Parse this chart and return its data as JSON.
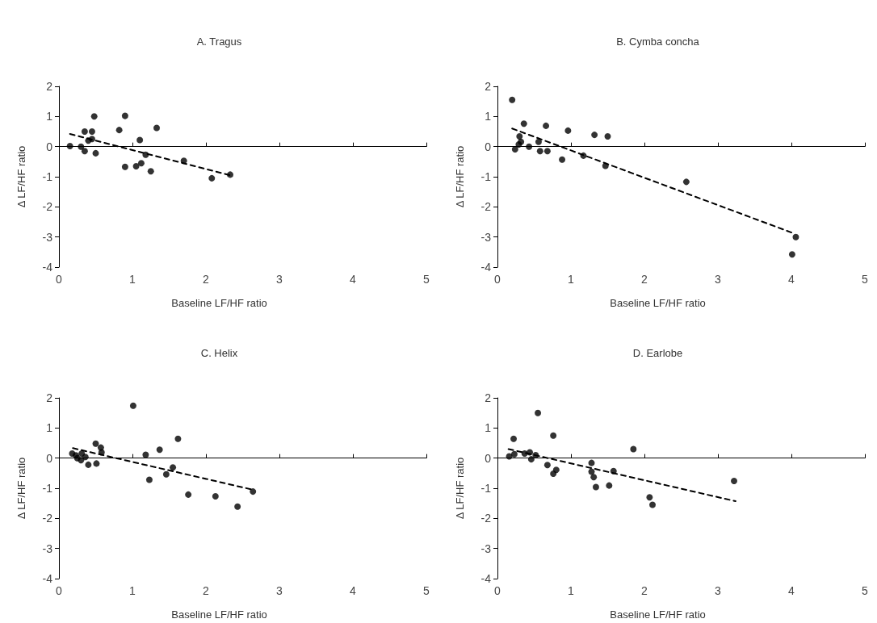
{
  "chart_data": [
    {
      "type": "scatter",
      "title": "A. Tragus",
      "xlabel": "Baseline LF/HF ratio",
      "ylabel": "Δ LF/HF ratio",
      "xlim": [
        0,
        5
      ],
      "xticks": [
        0,
        1,
        2,
        3,
        4,
        5
      ],
      "ylim": [
        -4,
        2
      ],
      "yticks": [
        -4,
        -3,
        -2,
        -1,
        0,
        1,
        2
      ],
      "series": [
        {
          "marker": "circle",
          "color": "#000000",
          "x": [
            0.15,
            0.3,
            0.35,
            0.35,
            0.4,
            0.45,
            0.45,
            0.48,
            0.5,
            0.82,
            0.9,
            0.9,
            1.05,
            1.1,
            1.12,
            1.18,
            1.25,
            1.33,
            1.7,
            2.08,
            2.33
          ],
          "values": [
            0.02,
            0.0,
            -0.15,
            0.5,
            0.2,
            0.5,
            0.25,
            1.0,
            -0.22,
            0.55,
            1.02,
            -0.67,
            -0.65,
            0.22,
            -0.55,
            -0.27,
            -0.82,
            0.62,
            -0.47,
            -1.05,
            -0.93
          ]
        },
        {
          "type": "line",
          "marker": "none",
          "color": "#000000",
          "line_style": "dashed",
          "x": [
            0.15,
            2.33
          ],
          "values": [
            0.42,
            -0.95
          ]
        }
      ]
    },
    {
      "type": "scatter",
      "title": "B. Cymba concha",
      "xlabel": "Baseline LF/HF ratio",
      "ylabel": "Δ LF/HF ratio",
      "xlim": [
        0,
        5
      ],
      "xticks": [
        0,
        1,
        2,
        3,
        4,
        5
      ],
      "ylim": [
        -4,
        2
      ],
      "yticks": [
        -4,
        -3,
        -2,
        -1,
        0,
        1,
        2
      ],
      "series": [
        {
          "marker": "circle",
          "color": "#000000",
          "x": [
            0.2,
            0.24,
            0.3,
            0.32,
            0.29,
            0.36,
            0.43,
            0.56,
            0.58,
            0.66,
            0.68,
            0.88,
            0.96,
            1.17,
            1.32,
            1.47,
            1.5,
            2.57,
            4.01,
            4.06
          ],
          "values": [
            1.55,
            -0.09,
            0.34,
            0.16,
            0.07,
            0.76,
            0.0,
            0.16,
            -0.15,
            0.69,
            -0.15,
            -0.43,
            0.53,
            -0.3,
            0.39,
            -0.64,
            0.34,
            -1.17,
            -3.58,
            -3.0
          ]
        },
        {
          "type": "line",
          "marker": "none",
          "color": "#000000",
          "line_style": "dashed",
          "x": [
            0.2,
            4.0
          ],
          "values": [
            0.6,
            -2.85
          ]
        }
      ]
    },
    {
      "type": "scatter",
      "title": "C. Helix",
      "xlabel": "Baseline LF/HF ratio",
      "ylabel": "Δ LF/HF ratio",
      "xlim": [
        0,
        5
      ],
      "xticks": [
        0,
        1,
        2,
        3,
        4,
        5
      ],
      "ylim": [
        -4,
        2
      ],
      "yticks": [
        -4,
        -3,
        -2,
        -1,
        0,
        1,
        2
      ],
      "series": [
        {
          "marker": "circle",
          "color": "#000000",
          "x": [
            0.18,
            0.23,
            0.25,
            0.28,
            0.3,
            0.31,
            0.36,
            0.4,
            0.5,
            0.51,
            0.57,
            0.58,
            1.01,
            1.18,
            1.23,
            1.37,
            1.46,
            1.55,
            1.62,
            1.76,
            2.13,
            2.43,
            2.64
          ],
          "values": [
            0.15,
            0.09,
            0.0,
            null,
            -0.07,
            0.15,
            0.04,
            -0.22,
            0.48,
            -0.18,
            0.35,
            0.19,
            1.74,
            0.11,
            -0.72,
            0.28,
            -0.54,
            -0.31,
            0.64,
            -1.21,
            -1.27,
            -1.61,
            -1.11
          ]
        },
        {
          "type": "line",
          "marker": "none",
          "color": "#000000",
          "line_style": "dashed",
          "x": [
            0.19,
            2.64
          ],
          "values": [
            0.33,
            -1.05
          ]
        }
      ]
    },
    {
      "type": "scatter",
      "title": "D. Earlobe",
      "xlabel": "Baseline LF/HF ratio",
      "ylabel": "Δ LF/HF ratio",
      "xlim": [
        0,
        5
      ],
      "xticks": [
        0,
        1,
        2,
        3,
        4,
        5
      ],
      "ylim": [
        -4,
        2
      ],
      "yticks": [
        -4,
        -3,
        -2,
        -1,
        0,
        1,
        2
      ],
      "series": [
        {
          "marker": "circle",
          "color": "#000000",
          "x": [
            0.16,
            0.23,
            0.22,
            0.37,
            0.44,
            0.46,
            0.52,
            0.55,
            0.68,
            0.76,
            0.76,
            0.8,
            1.28,
            1.28,
            1.31,
            1.34,
            1.52,
            1.58,
            1.85,
            2.07,
            2.11,
            3.22
          ],
          "values": [
            0.06,
            0.13,
            0.64,
            0.15,
            0.19,
            -0.04,
            0.1,
            1.5,
            -0.23,
            0.75,
            -0.52,
            -0.39,
            -0.16,
            -0.45,
            -0.63,
            -0.96,
            -0.91,
            -0.43,
            0.3,
            -1.3,
            -1.55,
            -0.76
          ]
        },
        {
          "type": "line",
          "marker": "none",
          "color": "#000000",
          "line_style": "dashed",
          "x": [
            0.15,
            3.24
          ],
          "values": [
            0.3,
            -1.43
          ]
        }
      ]
    }
  ]
}
